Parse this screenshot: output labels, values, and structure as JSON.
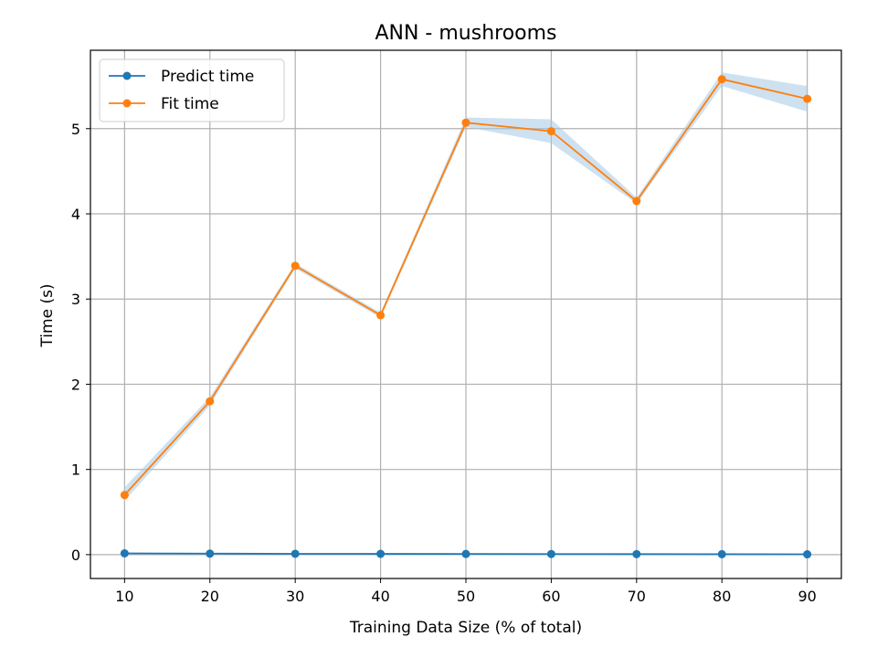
{
  "chart_data": {
    "type": "line",
    "title": "ANN - mushrooms",
    "xlabel": "Training Data Size (% of total)",
    "ylabel": "Time (s)",
    "x": [
      10,
      20,
      30,
      40,
      50,
      60,
      70,
      80,
      90
    ],
    "xlim": [
      6,
      94
    ],
    "ylim": [
      -0.28,
      5.92
    ],
    "xticks": [
      10,
      20,
      30,
      40,
      50,
      60,
      70,
      80,
      90
    ],
    "yticks": [
      0,
      1,
      2,
      3,
      4,
      5
    ],
    "grid": true,
    "legend_position": "top-left",
    "band_color": "#a6c8e3",
    "series": [
      {
        "name": "Predict time",
        "color": "#1f77b4",
        "values": [
          0.015,
          0.012,
          0.01,
          0.009,
          0.008,
          0.007,
          0.006,
          0.005,
          0.004
        ],
        "band_low": [
          0.012,
          0.01,
          0.008,
          0.007,
          0.006,
          0.005,
          0.004,
          0.003,
          0.002
        ],
        "band_high": [
          0.018,
          0.014,
          0.012,
          0.011,
          0.01,
          0.009,
          0.008,
          0.007,
          0.006
        ]
      },
      {
        "name": "Fit time",
        "color": "#ff7f0e",
        "values": [
          0.7,
          1.8,
          3.39,
          2.81,
          5.07,
          4.97,
          4.15,
          5.58,
          5.35
        ],
        "band_low": [
          0.63,
          1.75,
          3.36,
          2.78,
          5.02,
          4.83,
          4.12,
          5.5,
          5.2
        ],
        "band_high": [
          0.79,
          1.85,
          3.42,
          2.84,
          5.13,
          5.11,
          4.19,
          5.66,
          5.5
        ]
      }
    ]
  }
}
